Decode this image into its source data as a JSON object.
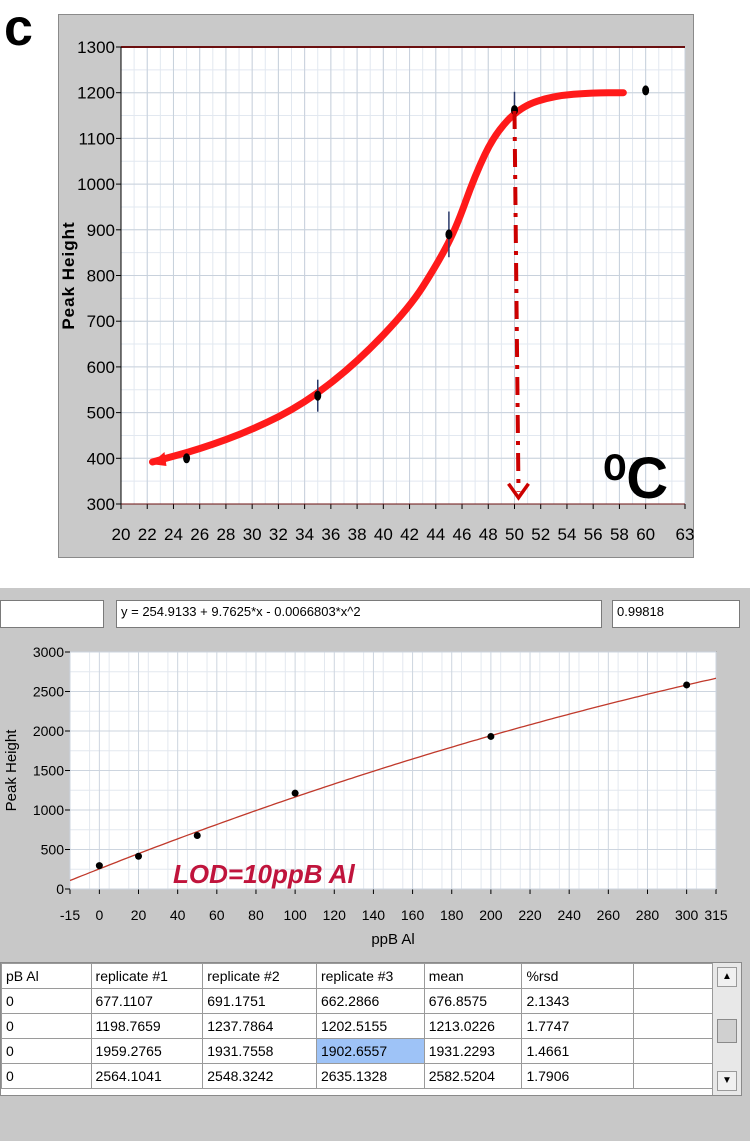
{
  "panel_letter": "c",
  "top_chart_unit": "⁰C",
  "equation": "y = 254.9133 + 9.7625*x - 0.0066803*x^2",
  "r_squared": "0.99818",
  "lod_label": "LOD=10ppB Al",
  "colors": {
    "curve_red": "#ff1a1a",
    "fit_line": "#c0392b",
    "lod_text": "#c0143c",
    "selected_cell": "#9ec3f7",
    "plot_bg": "#ffffff",
    "panel_bg": "#c8c8c8"
  },
  "chart_data": [
    {
      "type": "scatter",
      "ylabel": "Peak Height",
      "xlabel": "",
      "xlim": [
        20,
        63
      ],
      "ylim": [
        300,
        1300
      ],
      "x_ticks": [
        20,
        22,
        24,
        26,
        28,
        30,
        32,
        34,
        36,
        38,
        40,
        42,
        44,
        46,
        48,
        50,
        52,
        54,
        56,
        58,
        60,
        63
      ],
      "y_ticks": [
        300,
        400,
        500,
        600,
        700,
        800,
        900,
        1000,
        1100,
        1200,
        1300
      ],
      "points": [
        {
          "x": 25,
          "y": 400,
          "err": 10
        },
        {
          "x": 35,
          "y": 537,
          "err": 35
        },
        {
          "x": 45,
          "y": 890,
          "err": 50
        },
        {
          "x": 50,
          "y": 1162,
          "err": 40
        },
        {
          "x": 60,
          "y": 1205,
          "err": 10
        }
      ],
      "trend_curve": [
        [
          22.4,
          392
        ],
        [
          26,
          420
        ],
        [
          30,
          462
        ],
        [
          34,
          520
        ],
        [
          38,
          610
        ],
        [
          42,
          730
        ],
        [
          44,
          820
        ],
        [
          45.5,
          900
        ],
        [
          47,
          1020
        ],
        [
          48.5,
          1110
        ],
        [
          50.5,
          1170
        ],
        [
          53,
          1193
        ],
        [
          56,
          1200
        ],
        [
          58.3,
          1200
        ]
      ],
      "annotation": {
        "type": "dash-dot-arrow",
        "x": 50,
        "from_y": 1160,
        "to_y": 305
      },
      "grid": true
    },
    {
      "type": "scatter",
      "ylabel": "Peak Height",
      "xlabel": "ppB Al",
      "xlim": [
        -15,
        315
      ],
      "ylim": [
        0,
        3000
      ],
      "x_ticks": [
        -15,
        0,
        20,
        40,
        60,
        80,
        100,
        120,
        140,
        160,
        180,
        200,
        220,
        240,
        260,
        280,
        300,
        315
      ],
      "y_ticks": [
        0,
        500,
        1000,
        1500,
        2000,
        2500,
        3000
      ],
      "points": [
        {
          "x": 0,
          "y": 296
        },
        {
          "x": 20,
          "y": 415
        },
        {
          "x": 50,
          "y": 677
        },
        {
          "x": 100,
          "y": 1213
        },
        {
          "x": 200,
          "y": 1931
        },
        {
          "x": 300,
          "y": 2583
        }
      ],
      "fit": {
        "a": 254.9133,
        "b": 9.7625,
        "c": -0.0066803
      },
      "grid": true
    }
  ],
  "table": {
    "headers": [
      "pB Al",
      "replicate #1",
      "replicate #2",
      "replicate #3",
      "mean",
      "%rsd",
      ""
    ],
    "rows": [
      [
        "0",
        "677.1107",
        "691.1751",
        "662.2866",
        "676.8575",
        "2.1343",
        ""
      ],
      [
        "0",
        "1198.7659",
        "1237.7864",
        "1202.5155",
        "1213.0226",
        "1.7747",
        ""
      ],
      [
        "0",
        "1959.2765",
        "1931.7558",
        "1902.6557",
        "1931.2293",
        "1.4661",
        ""
      ],
      [
        "0",
        "2564.1041",
        "2548.3242",
        "2635.1328",
        "2582.5204",
        "1.7906",
        ""
      ]
    ],
    "selected_cell": [
      2,
      3
    ]
  },
  "scrollbar": {
    "up_icon": "▲",
    "down_icon": "▼"
  }
}
